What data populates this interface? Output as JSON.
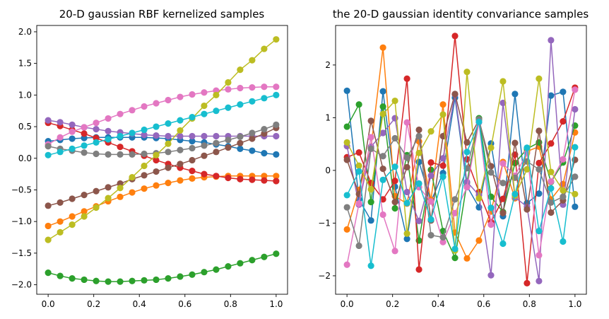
{
  "chart_data": [
    {
      "type": "line",
      "title": "20-D gaussian RBF kernelized samples",
      "xlabel": "",
      "ylabel": "",
      "xlim": [
        -0.05,
        1.05
      ],
      "ylim": [
        -2.15,
        2.1
      ],
      "xticks": [
        0.0,
        0.2,
        0.4,
        0.6,
        0.8,
        1.0
      ],
      "xtick_labels": [
        "0.0",
        "0.2",
        "0.4",
        "0.6",
        "0.8",
        "1.0"
      ],
      "yticks": [
        -2.0,
        -1.5,
        -1.0,
        -0.5,
        0.0,
        0.5,
        1.0,
        1.5,
        2.0
      ],
      "ytick_labels": [
        "−2.0",
        "−1.5",
        "−1.0",
        "−0.5",
        "0.0",
        "0.5",
        "1.0",
        "1.5",
        "2.0"
      ],
      "grid": false,
      "marker": "circle",
      "x": [
        0.0,
        0.0526,
        0.1053,
        0.1579,
        0.2105,
        0.2632,
        0.3158,
        0.3684,
        0.4211,
        0.4737,
        0.5263,
        0.5789,
        0.6316,
        0.6842,
        0.7368,
        0.7895,
        0.8421,
        0.8947,
        0.9474,
        1.0
      ],
      "series": [
        {
          "color": "#1f77b4",
          "values": [
            0.27,
            0.29,
            0.31,
            0.32,
            0.33,
            0.33,
            0.33,
            0.33,
            0.33,
            0.32,
            0.31,
            0.29,
            0.27,
            0.25,
            0.22,
            0.19,
            0.15,
            0.12,
            0.08,
            0.06
          ]
        },
        {
          "color": "#ff7f0e",
          "values": [
            -1.07,
            -1.0,
            -0.92,
            -0.84,
            -0.76,
            -0.68,
            -0.61,
            -0.54,
            -0.48,
            -0.43,
            -0.39,
            -0.35,
            -0.32,
            -0.3,
            -0.29,
            -0.28,
            -0.28,
            -0.28,
            -0.28,
            -0.28
          ]
        },
        {
          "color": "#2ca02c",
          "values": [
            -1.81,
            -1.86,
            -1.9,
            -1.92,
            -1.94,
            -1.95,
            -1.95,
            -1.94,
            -1.93,
            -1.92,
            -1.9,
            -1.87,
            -1.84,
            -1.8,
            -1.76,
            -1.71,
            -1.66,
            -1.61,
            -1.56,
            -1.51
          ]
        },
        {
          "color": "#d62728",
          "values": [
            0.56,
            0.51,
            0.45,
            0.39,
            0.32,
            0.25,
            0.18,
            0.11,
            0.04,
            -0.03,
            -0.09,
            -0.15,
            -0.2,
            -0.25,
            -0.28,
            -0.31,
            -0.33,
            -0.34,
            -0.35,
            -0.36
          ]
        },
        {
          "color": "#9467bd",
          "values": [
            0.6,
            0.57,
            0.53,
            0.49,
            0.46,
            0.43,
            0.41,
            0.39,
            0.37,
            0.36,
            0.35,
            0.35,
            0.35,
            0.35,
            0.35,
            0.35,
            0.35,
            0.35,
            0.35,
            0.35
          ]
        },
        {
          "color": "#8c564b",
          "values": [
            -0.75,
            -0.7,
            -0.64,
            -0.58,
            -0.52,
            -0.46,
            -0.4,
            -0.33,
            -0.27,
            -0.21,
            -0.15,
            -0.09,
            -0.03,
            0.04,
            0.1,
            0.17,
            0.24,
            0.31,
            0.39,
            0.48
          ]
        },
        {
          "color": "#e377c2",
          "values": [
            0.22,
            0.33,
            0.42,
            0.49,
            0.56,
            0.63,
            0.7,
            0.76,
            0.82,
            0.87,
            0.92,
            0.97,
            1.01,
            1.04,
            1.07,
            1.09,
            1.11,
            1.12,
            1.13,
            1.13
          ]
        },
        {
          "color": "#7f7f7f",
          "values": [
            0.19,
            0.15,
            0.12,
            0.09,
            0.07,
            0.06,
            0.06,
            0.06,
            0.07,
            0.08,
            0.1,
            0.13,
            0.16,
            0.2,
            0.24,
            0.29,
            0.34,
            0.4,
            0.46,
            0.53
          ]
        },
        {
          "color": "#bcbd22",
          "values": [
            -1.29,
            -1.17,
            -1.05,
            -0.92,
            -0.78,
            -0.63,
            -0.47,
            -0.3,
            -0.12,
            0.05,
            0.23,
            0.44,
            0.63,
            0.83,
            1.0,
            1.2,
            1.4,
            1.55,
            1.73,
            1.88
          ]
        },
        {
          "color": "#17becf",
          "values": [
            0.05,
            0.1,
            0.15,
            0.2,
            0.25,
            0.3,
            0.35,
            0.4,
            0.45,
            0.5,
            0.55,
            0.6,
            0.65,
            0.7,
            0.75,
            0.8,
            0.85,
            0.9,
            0.95,
            1.0
          ]
        }
      ]
    },
    {
      "type": "line",
      "title": "the 20-D gaussian identity convariance samples",
      "xlabel": "",
      "ylabel": "",
      "xlim": [
        -0.05,
        1.05
      ],
      "ylim": [
        -2.35,
        2.75
      ],
      "xticks": [
        0.0,
        0.2,
        0.4,
        0.6,
        0.8,
        1.0
      ],
      "xtick_labels": [
        "0.0",
        "0.2",
        "0.4",
        "0.6",
        "0.8",
        "1.0"
      ],
      "yticks": [
        -2,
        -1,
        0,
        1,
        2
      ],
      "ytick_labels": [
        "−2",
        "−1",
        "0",
        "1",
        "2"
      ],
      "grid": false,
      "marker": "circle",
      "x": [
        0.0,
        0.0526,
        0.1053,
        0.1579,
        0.2105,
        0.2632,
        0.3158,
        0.3684,
        0.4211,
        0.4737,
        0.5263,
        0.5789,
        0.6316,
        0.6842,
        0.7368,
        0.7895,
        0.8421,
        0.8947,
        0.9474,
        1.0
      ],
      "series": [
        {
          "color": "#1f77b4",
          "values": [
            1.51,
            -0.55,
            -0.95,
            1.5,
            -0.31,
            -1.3,
            0.16,
            -0.59,
            -0.05,
            1.38,
            -0.3,
            -0.7,
            0.51,
            -0.87,
            1.45,
            -0.62,
            -0.44,
            1.42,
            1.49,
            -0.69
          ]
        },
        {
          "color": "#ff7f0e",
          "values": [
            -1.12,
            -0.37,
            0.43,
            2.33,
            -0.49,
            -0.63,
            0.55,
            -0.56,
            1.25,
            -1.18,
            -1.67,
            -1.33,
            -0.78,
            0.16,
            -0.53,
            0.36,
            0.45,
            -0.55,
            -0.26,
            0.72
          ]
        },
        {
          "color": "#2ca02c",
          "values": [
            0.83,
            1.25,
            -0.6,
            1.21,
            -0.72,
            0.29,
            -1.33,
            0.01,
            -1.15,
            -1.66,
            -0.23,
            0.99,
            -0.5,
            -0.79,
            0.14,
            0.41,
            0.53,
            -0.22,
            0.15,
            0.85
          ]
        },
        {
          "color": "#d62728",
          "values": [
            0.25,
            0.34,
            -0.24,
            -0.55,
            -0.2,
            1.74,
            -1.88,
            0.15,
            0.09,
            2.55,
            0.21,
            -0.41,
            -0.98,
            -0.54,
            0.3,
            -2.14,
            0.14,
            0.51,
            0.93,
            1.57
          ]
        },
        {
          "color": "#9467bd",
          "values": [
            0.46,
            -0.65,
            0.45,
            0.71,
            0.99,
            -0.41,
            -0.96,
            -0.1,
            0.23,
            1.44,
            -0.22,
            -0.47,
            -1.99,
            1.28,
            -0.51,
            -0.69,
            -2.1,
            2.47,
            -0.65,
            1.16
          ]
        },
        {
          "color": "#8c564b",
          "values": [
            0.2,
            -0.45,
            0.94,
            0.03,
            -0.6,
            0.06,
            0.77,
            -0.95,
            0.65,
            1.45,
            0.53,
            0.96,
            0.08,
            -0.81,
            0.52,
            -0.74,
            0.75,
            -0.8,
            -0.57,
            0.2
          ]
        },
        {
          "color": "#e377c2",
          "values": [
            -1.79,
            -0.63,
            0.63,
            -0.84,
            -1.53,
            0.91,
            -0.32,
            -0.59,
            -1.36,
            -0.81,
            -0.32,
            0.91,
            -1.03,
            0.13,
            -0.1,
            0.33,
            -1.61,
            -0.21,
            0.21,
            1.53
          ]
        },
        {
          "color": "#7f7f7f",
          "values": [
            -0.7,
            -1.43,
            0.41,
            0.27,
            0.61,
            0.24,
            0.65,
            -1.23,
            -1.27,
            -0.55,
            0.04,
            0.97,
            -0.04,
            -0.24,
            -0.14,
            0.17,
            0.02,
            -0.61,
            -0.5,
            -0.12
          ]
        },
        {
          "color": "#bcbd22",
          "values": [
            0.53,
            0.09,
            -0.36,
            1.07,
            1.32,
            -1.2,
            0.33,
            0.74,
            1.06,
            -1.52,
            1.87,
            -0.53,
            0.43,
            1.69,
            -0.48,
            0.02,
            1.74,
            -0.03,
            -0.38,
            -0.45
          ]
        },
        {
          "color": "#17becf",
          "values": [
            -0.47,
            -0.02,
            -1.81,
            -0.18,
            0.07,
            -0.62,
            -0.25,
            -0.93,
            -0.12,
            -1.49,
            0.35,
            0.92,
            -0.71,
            -1.39,
            -0.45,
            0.43,
            -1.15,
            -0.34,
            -1.35,
            0.44
          ]
        }
      ]
    }
  ]
}
